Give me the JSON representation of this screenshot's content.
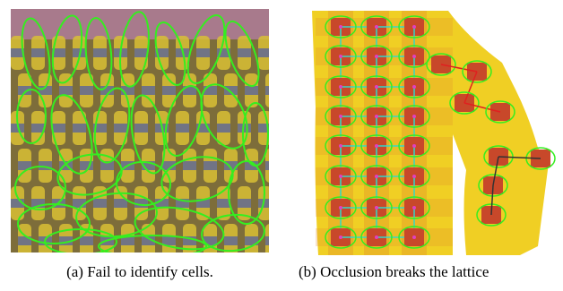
{
  "figure": {
    "panels": [
      {
        "caption": "(a) Fail to identify cells."
      },
      {
        "caption": "(b) Occlusion breaks the lattice"
      }
    ]
  }
}
